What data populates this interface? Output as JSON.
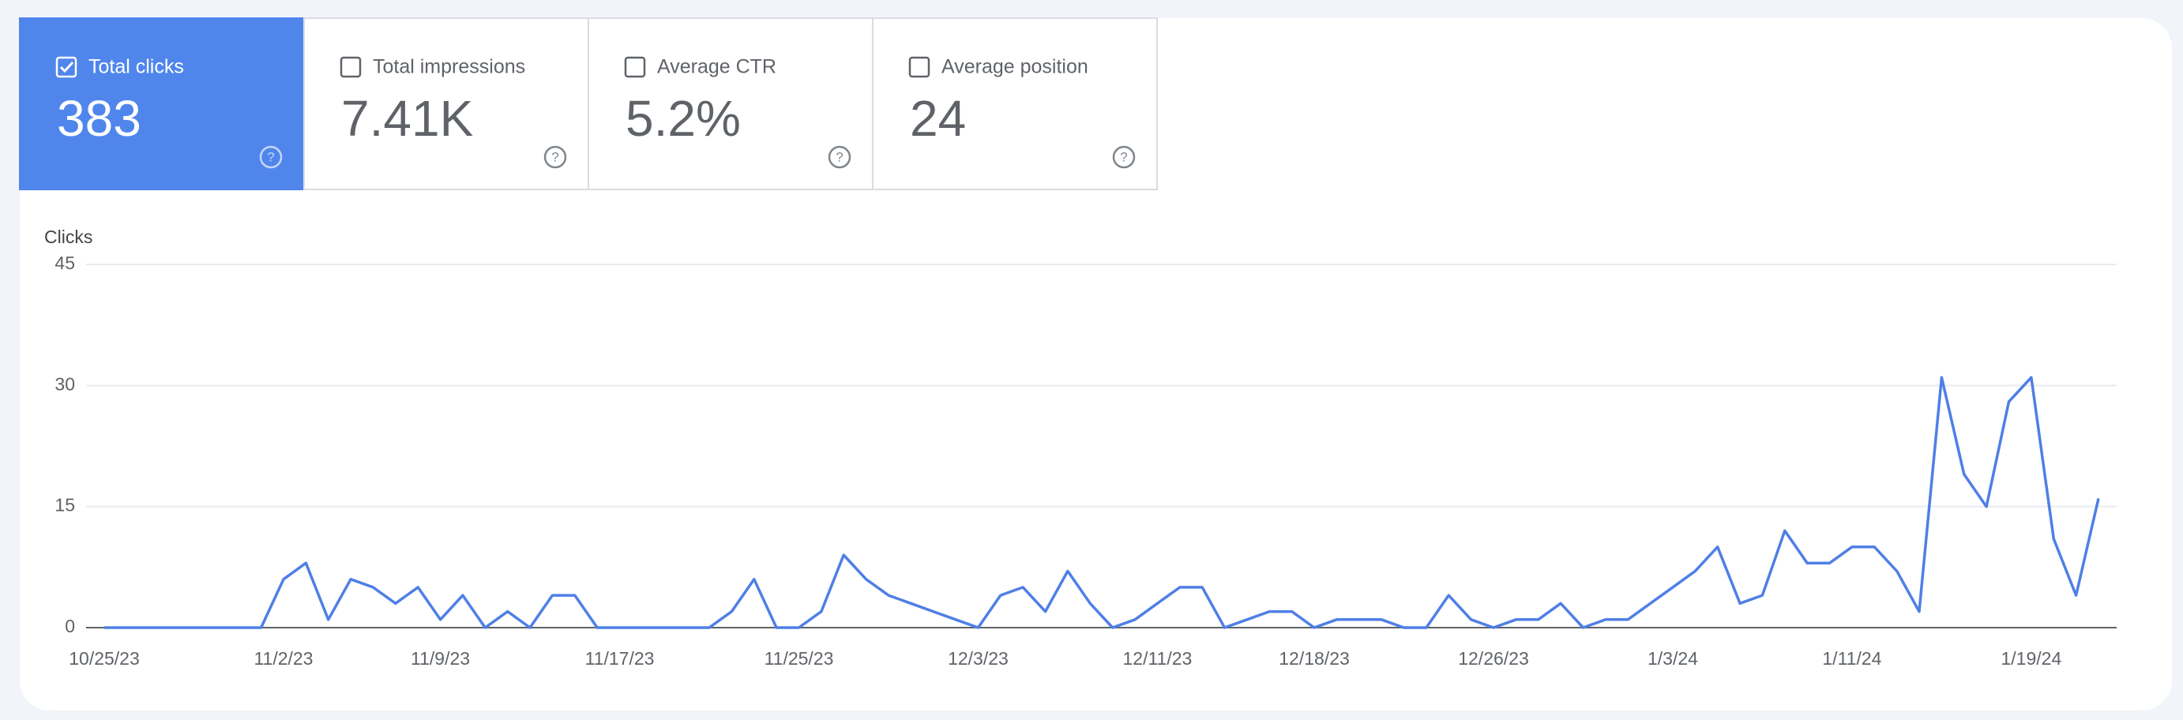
{
  "cards": [
    {
      "label": "Total clicks",
      "value": "383",
      "checked": true
    },
    {
      "label": "Total impressions",
      "value": "7.41K",
      "checked": false
    },
    {
      "label": "Average CTR",
      "value": "5.2%",
      "checked": false
    },
    {
      "label": "Average position",
      "value": "24",
      "checked": false
    }
  ],
  "chart_data": {
    "type": "line",
    "y_label": "Clicks",
    "color": "#4f7fe6",
    "categories": [
      "10/25/23",
      null,
      null,
      null,
      null,
      null,
      null,
      null,
      "11/2/23",
      null,
      null,
      null,
      null,
      null,
      null,
      "11/9/23",
      null,
      null,
      null,
      null,
      null,
      null,
      null,
      "11/17/23",
      null,
      null,
      null,
      null,
      null,
      null,
      null,
      "11/25/23",
      null,
      null,
      null,
      null,
      null,
      null,
      null,
      "12/3/23",
      null,
      null,
      null,
      null,
      null,
      null,
      null,
      "12/11/23",
      null,
      null,
      null,
      null,
      null,
      null,
      "12/18/23",
      null,
      null,
      null,
      null,
      null,
      null,
      null,
      "12/26/23",
      null,
      null,
      null,
      null,
      null,
      null,
      null,
      "1/3/24",
      null,
      null,
      null,
      null,
      null,
      null,
      null,
      "1/11/24",
      null,
      null,
      null,
      null,
      null,
      null,
      null,
      "1/19/24",
      null,
      null,
      null
    ],
    "values": [
      0,
      0,
      0,
      0,
      0,
      0,
      0,
      0,
      6,
      8,
      1,
      6,
      5,
      3,
      5,
      1,
      4,
      0,
      2,
      0,
      4,
      4,
      0,
      0,
      0,
      0,
      0,
      0,
      2,
      6,
      0,
      0,
      2,
      9,
      6,
      4,
      3,
      2,
      1,
      0,
      4,
      5,
      2,
      7,
      3,
      0,
      1,
      3,
      5,
      5,
      0,
      1,
      2,
      2,
      0,
      1,
      1,
      1,
      0,
      0,
      4,
      1,
      0,
      1,
      1,
      3,
      0,
      1,
      1,
      3,
      5,
      7,
      10,
      3,
      4,
      12,
      8,
      8,
      10,
      10,
      7,
      2,
      31,
      19,
      15,
      28,
      31,
      11,
      4,
      16
    ],
    "ylim": [
      0,
      45
    ],
    "yticks": [
      0,
      15,
      30,
      45
    ],
    "grid": true
  }
}
